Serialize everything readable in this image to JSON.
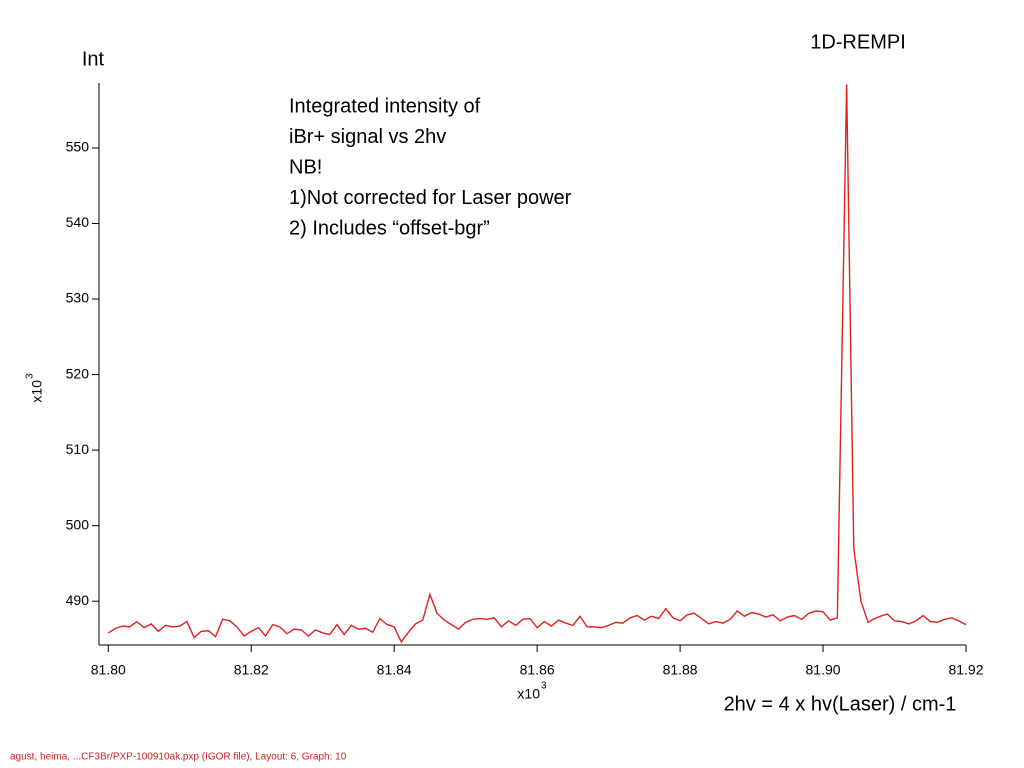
{
  "chart_data": {
    "type": "line",
    "title": "1D-REMPI",
    "y_label": "Int",
    "x_label": "2hv = 4 x hv(Laser) / cm-1",
    "x_multiplier": {
      "base": "x10",
      "exponent": "3"
    },
    "y_multiplier": {
      "base": "x10",
      "exponent": "3"
    },
    "annotation": [
      "Integrated intensity of",
      "iBr+ signal vs 2hv",
      "NB!",
      "1)Not corrected for Laser power",
      "2) Includes “offset-bgr”"
    ],
    "footer": "agust, heima, ...CF3Br/PXP-100910ak.pxp (IGOR file), Layout: 6, Graph: 10",
    "xlim": [
      81.7987,
      81.92
    ],
    "ylim": [
      484.2,
      558.6
    ],
    "xticks": [
      {
        "value": 81.8,
        "label": "81.80"
      },
      {
        "value": 81.82,
        "label": "81.82"
      },
      {
        "value": 81.84,
        "label": "81.84"
      },
      {
        "value": 81.86,
        "label": "81.86"
      },
      {
        "value": 81.88,
        "label": "81.88"
      },
      {
        "value": 81.9,
        "label": "81.90"
      },
      {
        "value": 81.92,
        "label": "81.92"
      }
    ],
    "yticks": [
      490,
      500,
      510,
      520,
      530,
      540,
      550
    ],
    "grid": false,
    "series": [
      {
        "name": "Int",
        "color": "#e02020",
        "x": [
          81.8,
          81.801,
          81.802,
          81.803,
          81.804,
          81.805,
          81.806,
          81.807,
          81.808,
          81.809,
          81.81,
          81.811,
          81.812,
          81.813,
          81.814,
          81.815,
          81.816,
          81.817,
          81.818,
          81.819,
          81.82,
          81.821,
          81.822,
          81.823,
          81.824,
          81.825,
          81.826,
          81.827,
          81.828,
          81.829,
          81.83,
          81.831,
          81.832,
          81.833,
          81.834,
          81.835,
          81.836,
          81.837,
          81.838,
          81.839,
          81.84,
          81.841,
          81.842,
          81.843,
          81.844,
          81.845,
          81.846,
          81.847,
          81.848,
          81.849,
          81.85,
          81.851,
          81.852,
          81.853,
          81.854,
          81.855,
          81.856,
          81.857,
          81.858,
          81.859,
          81.86,
          81.861,
          81.862,
          81.863,
          81.864,
          81.865,
          81.866,
          81.867,
          81.868,
          81.869,
          81.87,
          81.871,
          81.872,
          81.873,
          81.874,
          81.875,
          81.876,
          81.877,
          81.878,
          81.879,
          81.88,
          81.881,
          81.882,
          81.883,
          81.884,
          81.885,
          81.886,
          81.887,
          81.888,
          81.889,
          81.89,
          81.891,
          81.892,
          81.893,
          81.894,
          81.895,
          81.896,
          81.897,
          81.898,
          81.899,
          81.9,
          81.901,
          81.902,
          81.9033,
          81.9043,
          81.9053,
          81.9063,
          81.907,
          81.908,
          81.909,
          81.91,
          81.911,
          81.912,
          81.913,
          81.914,
          81.915,
          81.916,
          81.917,
          81.918,
          81.919,
          81.92
        ],
        "values": [
          485.8,
          486.4,
          486.7,
          486.6,
          487.3,
          486.5,
          487.0,
          486.0,
          486.8,
          486.6,
          486.7,
          487.3,
          485.2,
          486.0,
          486.1,
          485.3,
          487.6,
          487.4,
          486.6,
          485.4,
          486.0,
          486.5,
          485.4,
          486.9,
          486.6,
          485.7,
          486.3,
          486.2,
          485.4,
          486.2,
          485.8,
          485.6,
          486.9,
          485.6,
          486.8,
          486.3,
          486.4,
          485.9,
          487.7,
          486.9,
          486.6,
          484.6,
          485.9,
          487.0,
          487.5,
          490.9,
          488.4,
          487.5,
          486.9,
          486.3,
          487.2,
          487.6,
          487.7,
          487.6,
          487.8,
          486.6,
          487.4,
          486.8,
          487.6,
          487.7,
          486.5,
          487.3,
          486.7,
          487.5,
          487.1,
          486.8,
          488.0,
          486.6,
          486.6,
          486.5,
          486.8,
          487.2,
          487.1,
          487.8,
          488.1,
          487.5,
          488.0,
          487.7,
          489.0,
          487.8,
          487.4,
          488.2,
          488.4,
          487.7,
          487.0,
          487.3,
          487.1,
          487.6,
          488.7,
          488.0,
          488.5,
          488.3,
          487.9,
          488.2,
          487.4,
          487.9,
          488.1,
          487.6,
          488.4,
          488.7,
          488.6,
          487.5,
          487.8,
          558.4,
          497.0,
          490.0,
          487.2,
          487.6,
          488.0,
          488.3,
          487.4,
          487.3,
          487.0,
          487.4,
          488.1,
          487.3,
          487.2,
          487.6,
          487.8,
          487.4,
          486.9
        ]
      }
    ]
  }
}
